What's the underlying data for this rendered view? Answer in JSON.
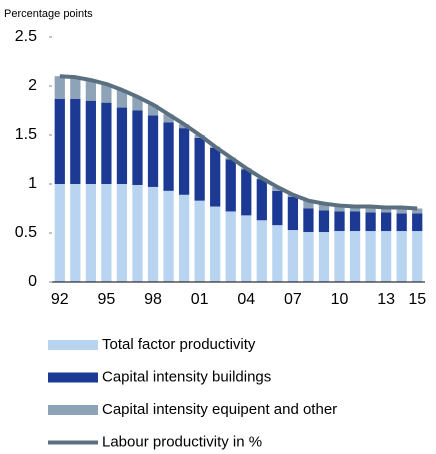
{
  "chart_data": {
    "type": "stacked_bar_line",
    "y_label": "Percentage points",
    "categories": [
      "92",
      null,
      null,
      "95",
      null,
      null,
      "98",
      null,
      null,
      "01",
      null,
      null,
      "04",
      null,
      null,
      "07",
      null,
      null,
      "10",
      null,
      null,
      "13",
      null,
      "15"
    ],
    "series": [
      {
        "name": "Total factor productivity",
        "color": "#b8d4f0",
        "kind": "bar",
        "values": [
          1.0,
          1.0,
          1.0,
          1.0,
          1.0,
          0.99,
          0.97,
          0.93,
          0.89,
          0.83,
          0.77,
          0.72,
          0.68,
          0.63,
          0.58,
          0.53,
          0.51,
          0.51,
          0.52,
          0.52,
          0.52,
          0.52,
          0.52,
          0.52
        ]
      },
      {
        "name": "Capital intensity buildings",
        "color": "#1c3a94",
        "kind": "bar",
        "values": [
          0.87,
          0.87,
          0.85,
          0.83,
          0.78,
          0.76,
          0.73,
          0.7,
          0.68,
          0.64,
          0.6,
          0.53,
          0.47,
          0.42,
          0.35,
          0.34,
          0.24,
          0.22,
          0.2,
          0.2,
          0.19,
          0.19,
          0.18,
          0.18
        ]
      },
      {
        "name": "Capital intensity equipent and other",
        "color": "#8ea3b8",
        "kind": "bar",
        "values": [
          0.23,
          0.22,
          0.21,
          0.19,
          0.18,
          0.14,
          0.11,
          0.08,
          0.04,
          0.03,
          0.01,
          0.02,
          0.01,
          0.01,
          0.04,
          0.02,
          0.08,
          0.07,
          0.06,
          0.05,
          0.06,
          0.05,
          0.06,
          0.05
        ]
      },
      {
        "name": "Labour productivity in %",
        "color": "#5a7080",
        "kind": "line",
        "values": [
          2.1,
          2.09,
          2.06,
          2.02,
          1.96,
          1.89,
          1.81,
          1.71,
          1.61,
          1.5,
          1.38,
          1.27,
          1.16,
          1.06,
          0.97,
          0.89,
          0.83,
          0.8,
          0.78,
          0.77,
          0.77,
          0.76,
          0.76,
          0.75
        ]
      }
    ],
    "ylim": [
      0,
      2.5
    ],
    "yticks": [
      0,
      0.5,
      1,
      1.5,
      2,
      2.5
    ],
    "grid": false,
    "legend": "bottom"
  }
}
